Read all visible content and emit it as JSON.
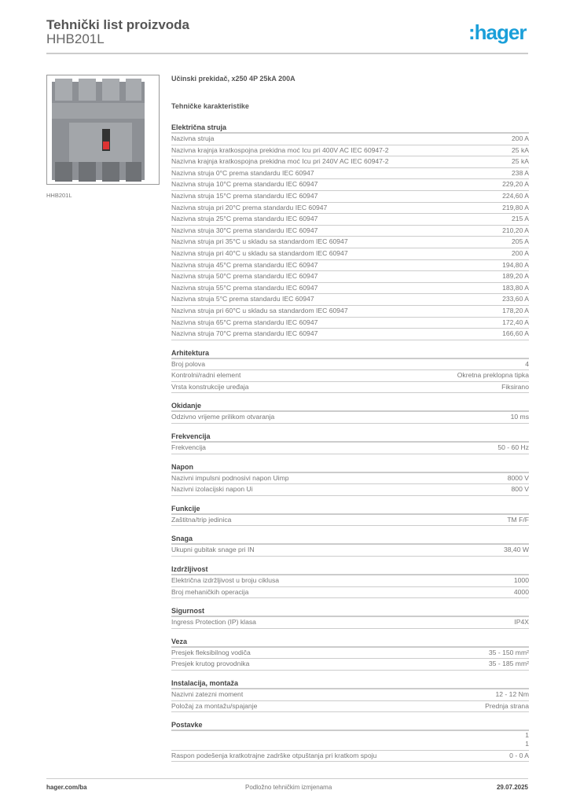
{
  "header": {
    "title": "Tehnički list proizvoda",
    "code": "HHB201L",
    "logo": ":hager"
  },
  "image": {
    "caption": "HHB201L"
  },
  "product": {
    "name": "Učinski prekidač, x250 4P 25kA 200A",
    "subtitle": "Tehničke karakteristike"
  },
  "sections": [
    {
      "title": "Električna struja",
      "rows": [
        [
          "Nazivna struja",
          "200 A"
        ],
        [
          "Nazivna krajnja kratkospojna prekidna moć Icu pri 400V AC IEC 60947-2",
          "25 kA"
        ],
        [
          "Nazivna krajnja kratkospojna prekidna moć Icu pri 240V AC IEC 60947-2",
          "25 kA"
        ],
        [
          "Nazivna struja 0°C prema standardu IEC 60947",
          "238 A"
        ],
        [
          "Nazivna struja 10°C prema standardu IEC 60947",
          "229,20 A"
        ],
        [
          "Nazivna struja 15°C prema standardu IEC 60947",
          "224,60 A"
        ],
        [
          "Nazivna struja pri 20°C prema standardu IEC 60947",
          "219,80 A"
        ],
        [
          "Nazivna struja 25°C prema standardu IEC 60947",
          "215 A"
        ],
        [
          "Nazivna struja 30°C prema standardu IEC 60947",
          "210,20 A"
        ],
        [
          "Nazivna struja pri 35°C u skladu sa standardom IEC 60947",
          "205 A"
        ],
        [
          "Nazivna struja pri 40°C u skladu sa standardom IEC 60947",
          "200 A"
        ],
        [
          "Nazivna struja 45°C prema standardu IEC 60947",
          "194,80 A"
        ],
        [
          "Nazivna struja 50°C prema standardu IEC 60947",
          "189,20 A"
        ],
        [
          "Nazivna struja 55°C prema standardu IEC 60947",
          "183,80 A"
        ],
        [
          "Nazivna struja 5°C prema standardu IEC 60947",
          "233,60 A"
        ],
        [
          "Nazivna struja pri 60°C u skladu sa standardom IEC 60947",
          "178,20 A"
        ],
        [
          "Nazivna struja 65°C prema standardu IEC 60947",
          "172,40 A"
        ],
        [
          "Nazivna struja 70°C prema standardu IEC 60947",
          "166,60 A"
        ]
      ]
    },
    {
      "title": "Arhitektura",
      "rows": [
        [
          "Broj polova",
          "4"
        ],
        [
          "Kontrolni/radni element",
          "Okretna preklopna tipka"
        ],
        [
          "Vrsta konstrukcije uređaja",
          "Fiksirano"
        ]
      ]
    },
    {
      "title": "Okidanje",
      "rows": [
        [
          "Odzivno vrijeme prilikom otvaranja",
          "10 ms"
        ]
      ]
    },
    {
      "title": "Frekvencija",
      "rows": [
        [
          "Frekvencija",
          "50 - 60 Hz"
        ]
      ]
    },
    {
      "title": "Napon",
      "rows": [
        [
          "Nazivni impulsni podnosivi napon Uimp",
          "8000 V"
        ],
        [
          "Nazivni izolacijski napon Ui",
          "800 V"
        ]
      ]
    },
    {
      "title": "Funkcije",
      "rows": [
        [
          "Zaštitna/trip jedinica",
          "TM F/F"
        ]
      ]
    },
    {
      "title": "Snaga",
      "rows": [
        [
          "Ukupni gubitak snage pri IN",
          "38,40 W"
        ]
      ]
    },
    {
      "title": "Izdržljivost",
      "rows": [
        [
          "Električna izdržljivost u broju ciklusa",
          "1000"
        ],
        [
          "Broj mehaničkih operacija",
          "4000"
        ]
      ]
    },
    {
      "title": "Sigurnost",
      "rows": [
        [
          "Ingress Protection (IP) klasa",
          "IP4X"
        ]
      ]
    },
    {
      "title": "Veza",
      "rows": [
        [
          "Presjek fleksibilnog vodiča",
          "35 - 150 mm²"
        ],
        [
          "Presjek krutog provodnika",
          "35 - 185 mm²"
        ]
      ]
    },
    {
      "title": "Instalacija, montaža",
      "rows": [
        [
          "Nazivni zatezni moment",
          "12 - 12 Nm"
        ],
        [
          "Položaj za montažu/spajanje",
          "Prednja strana"
        ]
      ]
    },
    {
      "title": "Postavke",
      "rows": [
        [
          "",
          "1"
        ],
        [
          "",
          "1"
        ],
        [
          "Raspon podešenja kratkotrajne zadrške otpuštanja pri kratkom spoju",
          "0 - 0 A"
        ]
      ]
    }
  ],
  "footer": {
    "site": "hager.com/ba",
    "note": "Podložno tehničkim izmjenama",
    "date": "29.07.2025"
  }
}
